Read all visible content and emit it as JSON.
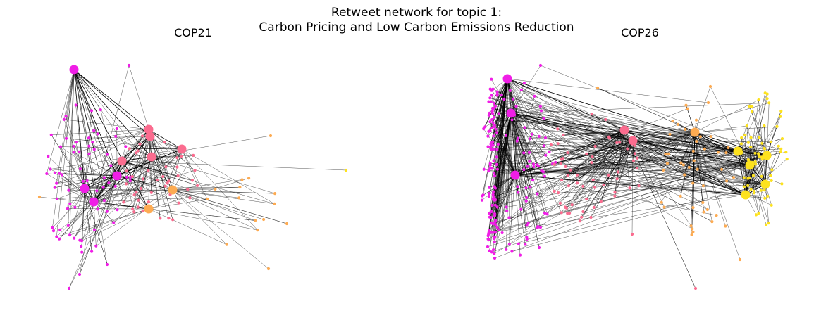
{
  "figure": {
    "title_line1": "Retweet network for topic 1:",
    "title_line2": "Carbon Pricing and Low Carbon Emissions Reduction"
  },
  "panels": [
    {
      "name": "COP21",
      "seed": 21,
      "node_counts": {
        "magenta": 70,
        "pink": 45,
        "orange": 12,
        "yellow": 1
      },
      "hubs": [
        {
          "id": 1,
          "kind": "magenta"
        },
        {
          "id": 2,
          "kind": "magenta"
        },
        {
          "id": 3,
          "kind": "magenta"
        },
        {
          "id": 4,
          "kind": "magenta"
        },
        {
          "id": 5,
          "kind": "pink"
        },
        {
          "id": 6,
          "kind": "pink"
        },
        {
          "id": 7,
          "kind": "pink"
        },
        {
          "id": 8,
          "kind": "pink"
        },
        {
          "id": 9,
          "kind": "pink"
        },
        {
          "id": 10,
          "kind": "orange"
        },
        {
          "id": 11,
          "kind": "orange"
        }
      ]
    },
    {
      "name": "COP26",
      "seed": 26,
      "node_counts": {
        "magenta": 180,
        "pink": 60,
        "orange": 45,
        "yellow": 70
      },
      "hubs": [
        {
          "id": 1,
          "kind": "magenta"
        },
        {
          "id": 2,
          "kind": "magenta"
        },
        {
          "id": 3,
          "kind": "magenta"
        },
        {
          "id": 4,
          "kind": "pink"
        },
        {
          "id": 5,
          "kind": "pink"
        },
        {
          "id": 6,
          "kind": "orange"
        },
        {
          "id": 7,
          "kind": "yellow"
        },
        {
          "id": 8,
          "kind": "yellow"
        },
        {
          "id": 9,
          "kind": "yellow"
        },
        {
          "id": 10,
          "kind": "yellow"
        },
        {
          "id": 11,
          "kind": "yellow"
        }
      ]
    }
  ],
  "colors": {
    "magenta": "#f01ee6",
    "pink": "#fb6c8f",
    "orange": "#fdab52",
    "yellow": "#fde21e",
    "edge": "#000000",
    "background": "#ffffff"
  }
}
